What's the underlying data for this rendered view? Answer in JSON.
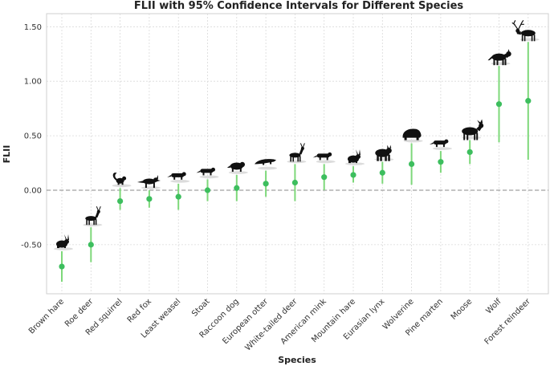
{
  "chart_data": {
    "type": "scatter",
    "title": "FLII with 95% Confidence Intervals for Different Species",
    "xlabel": "Species",
    "ylabel": "FLII",
    "ylim": [
      -0.95,
      1.62
    ],
    "yticks": [
      "1.50",
      "1.00",
      "0.50",
      "0.00",
      "-0.50"
    ],
    "yticks_values": [
      1.5,
      1.0,
      0.5,
      0.0,
      -0.5
    ],
    "reference_line": 0.0,
    "point_color": "#3dbe5e",
    "ci_color": "#7ed87a",
    "categories": [
      "Brown hare",
      "Roe deer",
      "Red squirrel",
      "Red fox",
      "Least weasel",
      "Stoat",
      "Raccoon dog",
      "European otter",
      "White-tailed deer",
      "American mink",
      "Mountain hare",
      "Eurasian lynx",
      "Wolverine",
      "Pine marten",
      "Moose",
      "Wolf",
      "Forest reindeer"
    ],
    "values": [
      -0.7,
      -0.5,
      -0.1,
      -0.08,
      -0.06,
      0.0,
      0.02,
      0.06,
      0.07,
      0.12,
      0.14,
      0.16,
      0.24,
      0.26,
      0.35,
      0.79,
      0.82
    ],
    "ci_lower": [
      -0.84,
      -0.66,
      -0.18,
      -0.16,
      -0.18,
      -0.1,
      -0.1,
      -0.06,
      -0.1,
      0.0,
      0.07,
      0.06,
      0.05,
      0.16,
      0.24,
      0.44,
      0.28
    ],
    "ci_upper": [
      -0.56,
      -0.34,
      0.02,
      0.0,
      0.06,
      0.1,
      0.14,
      0.18,
      0.24,
      0.24,
      0.22,
      0.26,
      0.43,
      0.36,
      0.46,
      1.14,
      1.36
    ],
    "icons": [
      "hare-silhouette-icon",
      "roe-deer-silhouette-icon",
      "squirrel-silhouette-icon",
      "fox-silhouette-icon",
      "weasel-silhouette-icon",
      "stoat-silhouette-icon",
      "raccoon-dog-silhouette-icon",
      "otter-silhouette-icon",
      "deer-silhouette-icon",
      "mink-silhouette-icon",
      "mountain-hare-silhouette-icon",
      "lynx-silhouette-icon",
      "wolverine-silhouette-icon",
      "marten-silhouette-icon",
      "moose-silhouette-icon",
      "wolf-silhouette-icon",
      "reindeer-silhouette-icon"
    ]
  }
}
